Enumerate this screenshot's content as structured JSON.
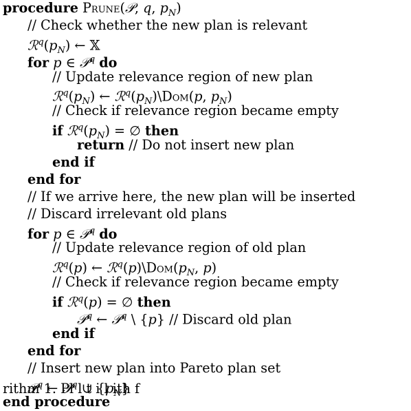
{
  "lines": [
    {
      "indent": 0,
      "parts": [
        {
          "t": "procedure",
          "c": "kw"
        },
        {
          "t": " "
        },
        {
          "t": "Prune",
          "c": "sc"
        },
        {
          "t": "("
        },
        {
          "t": "𝒫",
          "c": "cal"
        },
        {
          "t": ", "
        },
        {
          "t": "q",
          "c": "m"
        },
        {
          "t": ", "
        },
        {
          "t": "p",
          "c": "m"
        },
        {
          "t": "N",
          "c": "m sub"
        },
        {
          "t": ")"
        }
      ]
    },
    {
      "indent": 1,
      "parts": [
        {
          "t": "// Check whether the new plan is relevant"
        }
      ]
    },
    {
      "indent": 1,
      "parts": [
        {
          "t": "ℛ",
          "c": "cal"
        },
        {
          "t": "q",
          "c": "m sup"
        },
        {
          "t": "("
        },
        {
          "t": "p",
          "c": "m"
        },
        {
          "t": "N",
          "c": "m sub"
        },
        {
          "t": ") ← 𝕏"
        }
      ]
    },
    {
      "indent": 1,
      "parts": [
        {
          "t": "for",
          "c": "kw"
        },
        {
          "t": " "
        },
        {
          "t": "p",
          "c": "m"
        },
        {
          "t": " ∈ "
        },
        {
          "t": "𝒫",
          "c": "cal"
        },
        {
          "t": "q",
          "c": "m sup"
        },
        {
          "t": " "
        },
        {
          "t": "do",
          "c": "kw"
        }
      ]
    },
    {
      "indent": 2,
      "parts": [
        {
          "t": "// Update relevance region of new plan"
        }
      ]
    },
    {
      "indent": 2,
      "parts": [
        {
          "t": "ℛ",
          "c": "cal"
        },
        {
          "t": "q",
          "c": "m sup"
        },
        {
          "t": "("
        },
        {
          "t": "p",
          "c": "m"
        },
        {
          "t": "N",
          "c": "m sub"
        },
        {
          "t": ") ← "
        },
        {
          "t": "ℛ",
          "c": "cal"
        },
        {
          "t": "q",
          "c": "m sup"
        },
        {
          "t": "("
        },
        {
          "t": "p",
          "c": "m"
        },
        {
          "t": "N",
          "c": "m sub"
        },
        {
          "t": ")\\"
        },
        {
          "t": "Dom",
          "c": "sc"
        },
        {
          "t": "("
        },
        {
          "t": "p",
          "c": "m"
        },
        {
          "t": ", "
        },
        {
          "t": "p",
          "c": "m"
        },
        {
          "t": "N",
          "c": "m sub"
        },
        {
          "t": ")"
        }
      ]
    },
    {
      "indent": 2,
      "parts": [
        {
          "t": "// Check if relevance region became empty"
        }
      ]
    },
    {
      "indent": 2,
      "parts": [
        {
          "t": "if",
          "c": "kw"
        },
        {
          "t": " "
        },
        {
          "t": "ℛ",
          "c": "cal"
        },
        {
          "t": "q",
          "c": "m sup"
        },
        {
          "t": "("
        },
        {
          "t": "p",
          "c": "m"
        },
        {
          "t": "N",
          "c": "m sub"
        },
        {
          "t": ") = ∅ "
        },
        {
          "t": "then",
          "c": "kw"
        }
      ]
    },
    {
      "indent": 3,
      "parts": [
        {
          "t": "return",
          "c": "kw"
        },
        {
          "t": " // Do not insert new plan"
        }
      ]
    },
    {
      "indent": 2,
      "parts": [
        {
          "t": "end if",
          "c": "kw"
        }
      ]
    },
    {
      "indent": 1,
      "parts": [
        {
          "t": "end for",
          "c": "kw"
        }
      ]
    },
    {
      "indent": 1,
      "parts": [
        {
          "t": "// If we arrive here, the new plan will be inserted"
        }
      ]
    },
    {
      "indent": 1,
      "parts": [
        {
          "t": "// Discard irrelevant old plans"
        }
      ]
    },
    {
      "indent": 1,
      "parts": [
        {
          "t": "for",
          "c": "kw"
        },
        {
          "t": " "
        },
        {
          "t": "p",
          "c": "m"
        },
        {
          "t": " ∈ "
        },
        {
          "t": "𝒫",
          "c": "cal"
        },
        {
          "t": "q",
          "c": "m sup"
        },
        {
          "t": " "
        },
        {
          "t": "do",
          "c": "kw"
        }
      ]
    },
    {
      "indent": 2,
      "parts": [
        {
          "t": "// Update relevance region of old plan"
        }
      ]
    },
    {
      "indent": 2,
      "parts": [
        {
          "t": "ℛ",
          "c": "cal"
        },
        {
          "t": "q",
          "c": "m sup"
        },
        {
          "t": "("
        },
        {
          "t": "p",
          "c": "m"
        },
        {
          "t": ") ← "
        },
        {
          "t": "ℛ",
          "c": "cal"
        },
        {
          "t": "q",
          "c": "m sup"
        },
        {
          "t": "("
        },
        {
          "t": "p",
          "c": "m"
        },
        {
          "t": ")\\"
        },
        {
          "t": "Dom",
          "c": "sc"
        },
        {
          "t": "("
        },
        {
          "t": "p",
          "c": "m"
        },
        {
          "t": "N",
          "c": "m sub"
        },
        {
          "t": ", "
        },
        {
          "t": "p",
          "c": "m"
        },
        {
          "t": ")"
        }
      ]
    },
    {
      "indent": 2,
      "parts": [
        {
          "t": "// Check if relevance region became empty"
        }
      ]
    },
    {
      "indent": 2,
      "parts": [
        {
          "t": "if",
          "c": "kw"
        },
        {
          "t": " "
        },
        {
          "t": "ℛ",
          "c": "cal"
        },
        {
          "t": "q",
          "c": "m sup"
        },
        {
          "t": "("
        },
        {
          "t": "p",
          "c": "m"
        },
        {
          "t": ") = ∅ "
        },
        {
          "t": "then",
          "c": "kw"
        }
      ]
    },
    {
      "indent": 3,
      "parts": [
        {
          "t": "𝒫",
          "c": "cal"
        },
        {
          "t": "q",
          "c": "m sup"
        },
        {
          "t": " ← "
        },
        {
          "t": "𝒫",
          "c": "cal"
        },
        {
          "t": "q",
          "c": "m sup"
        },
        {
          "t": " \\ {"
        },
        {
          "t": "p",
          "c": "m"
        },
        {
          "t": "} // Discard old plan"
        }
      ]
    },
    {
      "indent": 2,
      "parts": [
        {
          "t": "end if",
          "c": "kw"
        }
      ]
    },
    {
      "indent": 1,
      "parts": [
        {
          "t": "end for",
          "c": "kw"
        }
      ]
    },
    {
      "indent": 1,
      "parts": [
        {
          "t": "// Insert new plan into Pareto plan set"
        }
      ]
    },
    {
      "indent": 1,
      "parts": [
        {
          "t": "𝒫",
          "c": "cal"
        },
        {
          "t": "q",
          "c": "m sup"
        },
        {
          "t": " ← "
        },
        {
          "t": "𝒫",
          "c": "cal"
        },
        {
          "t": "q",
          "c": "m sup"
        },
        {
          "t": " ∪ {"
        },
        {
          "t": "p",
          "c": "m"
        },
        {
          "t": "N",
          "c": "m sub"
        },
        {
          "t": "}"
        }
      ]
    },
    {
      "indent": 0,
      "parts": [
        {
          "t": "end procedure",
          "c": "kw"
        }
      ]
    }
  ],
  "caption_fragment": "rithm 1. Pl  l   t              i          l    ith   f"
}
